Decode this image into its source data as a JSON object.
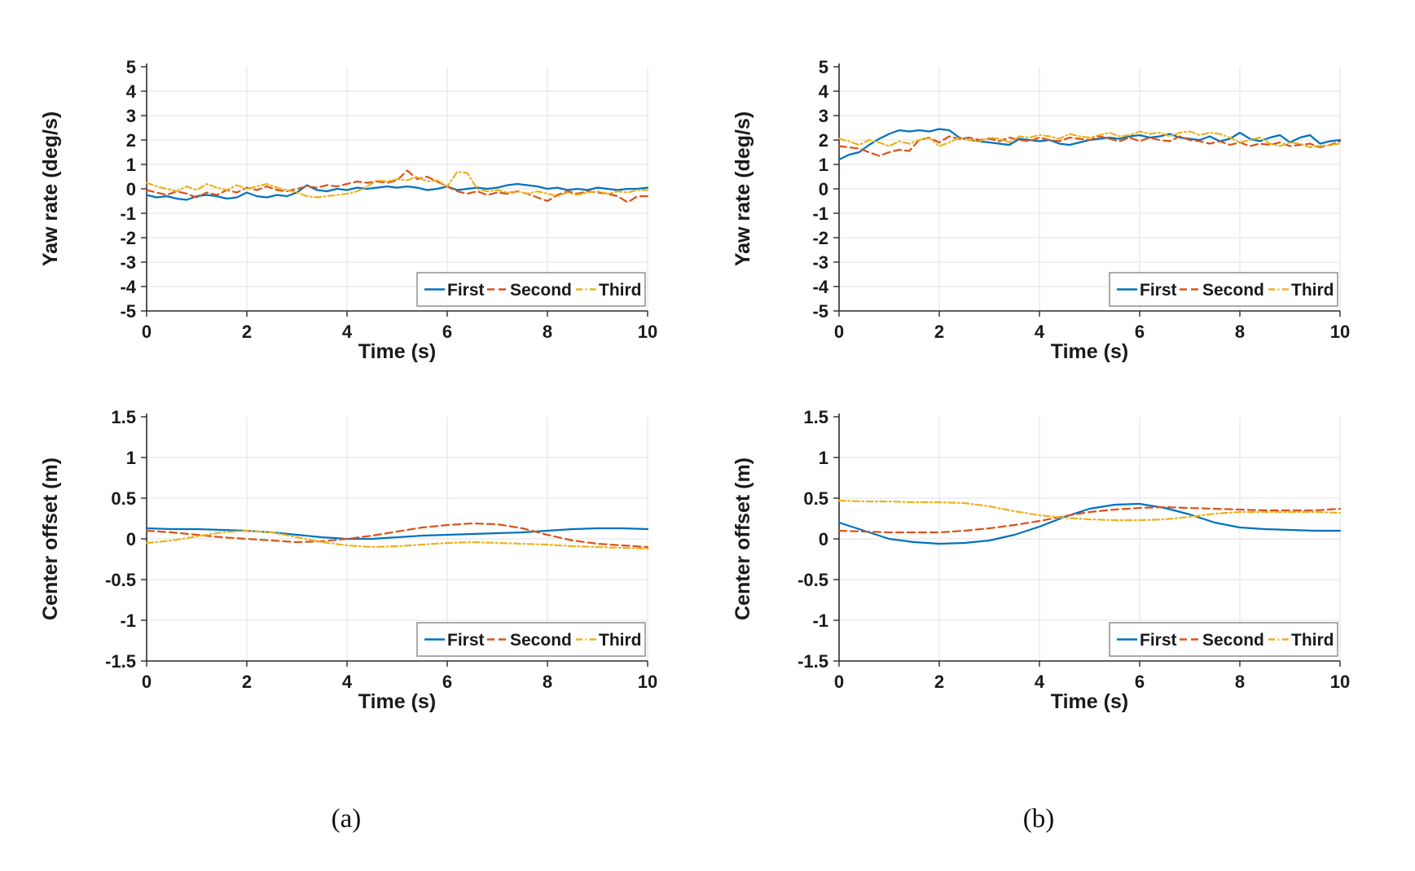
{
  "figure": {
    "background": "#ffffff",
    "captions": {
      "a": "(a)",
      "b": "(b)"
    }
  },
  "palette": {
    "first": "#0072BD",
    "second": "#D95319",
    "third": "#EDB120",
    "axis": "#2b2b2b",
    "grid": "#e7e7e7",
    "tick_label": "#1a1a1a",
    "legend_border": "#8f8f8f",
    "legend_background": "#ffffff"
  },
  "legend_labels": [
    "First",
    "Second",
    "Third"
  ],
  "chart_data": [
    {
      "id": "yaw-a",
      "type": "line",
      "panel": "a",
      "title": "",
      "xlabel": "Time (s)",
      "ylabel": "Yaw rate (deg/s)",
      "xlim": [
        0,
        10
      ],
      "ylim": [
        -5,
        5
      ],
      "xticks": [
        0,
        2,
        4,
        6,
        8,
        10
      ],
      "yticks": [
        5,
        4,
        3,
        2,
        1,
        0,
        -1,
        -2,
        -3,
        -4,
        -5
      ],
      "grid": true,
      "legend_position": "bottom-right",
      "x_start": 0,
      "x_step": 0.2,
      "series": [
        {
          "name": "First",
          "color_key": "first",
          "dash": "solid",
          "values": [
            -0.25,
            -0.35,
            -0.3,
            -0.4,
            -0.45,
            -0.3,
            -0.25,
            -0.3,
            -0.4,
            -0.35,
            -0.15,
            -0.3,
            -0.35,
            -0.25,
            -0.3,
            -0.15,
            0.15,
            -0.05,
            -0.1,
            0.0,
            -0.05,
            0.05,
            0.0,
            0.05,
            0.1,
            0.05,
            0.1,
            0.05,
            -0.05,
            0.0,
            0.1,
            -0.05,
            0.0,
            0.05,
            0.0,
            0.05,
            0.15,
            0.2,
            0.15,
            0.1,
            0.0,
            0.05,
            -0.05,
            0.0,
            -0.05,
            0.05,
            0.0,
            -0.05,
            0.0,
            0.0,
            0.05
          ]
        },
        {
          "name": "Second",
          "color_key": "second",
          "dash": "dashed",
          "values": [
            -0.05,
            -0.15,
            -0.25,
            -0.1,
            -0.2,
            -0.35,
            -0.15,
            -0.25,
            -0.05,
            -0.15,
            0.05,
            -0.05,
            0.1,
            -0.05,
            -0.1,
            0.0,
            0.1,
            0.05,
            0.15,
            0.1,
            0.2,
            0.3,
            0.25,
            0.3,
            0.25,
            0.35,
            0.75,
            0.4,
            0.5,
            0.3,
            0.1,
            -0.1,
            -0.2,
            -0.1,
            -0.25,
            -0.15,
            -0.2,
            -0.1,
            -0.2,
            -0.35,
            -0.5,
            -0.25,
            -0.1,
            -0.2,
            -0.1,
            -0.15,
            -0.2,
            -0.3,
            -0.55,
            -0.3,
            -0.3
          ]
        },
        {
          "name": "Third",
          "color_key": "third",
          "dash": "dashdot",
          "values": [
            0.25,
            0.1,
            0.0,
            -0.1,
            0.1,
            -0.05,
            0.2,
            0.05,
            -0.05,
            0.15,
            0.0,
            0.1,
            0.2,
            0.05,
            -0.05,
            -0.15,
            -0.3,
            -0.35,
            -0.3,
            -0.25,
            -0.2,
            -0.1,
            0.1,
            0.35,
            0.3,
            0.4,
            0.35,
            0.5,
            0.3,
            0.35,
            0.1,
            0.7,
            0.65,
            0.0,
            -0.1,
            -0.05,
            -0.15,
            -0.1,
            -0.2,
            -0.1,
            -0.2,
            -0.3,
            -0.15,
            -0.25,
            -0.15,
            -0.1,
            -0.2,
            -0.1,
            -0.15,
            -0.05,
            -0.05
          ]
        }
      ]
    },
    {
      "id": "yaw-b",
      "type": "line",
      "panel": "b",
      "title": "",
      "xlabel": "Time (s)",
      "ylabel": "Yaw rate (deg/s)",
      "xlim": [
        0,
        10
      ],
      "ylim": [
        -5,
        5
      ],
      "xticks": [
        0,
        2,
        4,
        6,
        8,
        10
      ],
      "yticks": [
        5,
        4,
        3,
        2,
        1,
        0,
        -1,
        -2,
        -3,
        -4,
        -5
      ],
      "grid": true,
      "legend_position": "bottom-right",
      "x_start": 0,
      "x_step": 0.2,
      "series": [
        {
          "name": "First",
          "color_key": "first",
          "dash": "solid",
          "values": [
            1.2,
            1.4,
            1.5,
            1.8,
            2.05,
            2.25,
            2.4,
            2.35,
            2.4,
            2.35,
            2.45,
            2.4,
            2.1,
            2.0,
            1.95,
            1.9,
            1.85,
            1.8,
            2.05,
            2.0,
            1.95,
            2.0,
            1.85,
            1.8,
            1.9,
            2.0,
            2.05,
            2.1,
            2.05,
            2.15,
            2.2,
            2.1,
            2.15,
            2.25,
            2.1,
            2.05,
            2.0,
            2.15,
            1.95,
            2.05,
            2.3,
            2.05,
            1.95,
            2.1,
            2.2,
            1.9,
            2.1,
            2.2,
            1.85,
            1.95,
            2.0
          ]
        },
        {
          "name": "Second",
          "color_key": "second",
          "dash": "dashed",
          "values": [
            1.75,
            1.7,
            1.65,
            1.5,
            1.35,
            1.5,
            1.6,
            1.55,
            2.0,
            2.1,
            1.9,
            2.15,
            2.05,
            2.1,
            2.0,
            2.05,
            1.95,
            2.1,
            2.0,
            1.95,
            2.1,
            2.0,
            1.95,
            2.1,
            2.05,
            2.0,
            2.15,
            2.05,
            1.95,
            2.1,
            1.95,
            2.1,
            2.0,
            1.95,
            2.15,
            2.0,
            1.95,
            1.85,
            1.95,
            1.8,
            1.9,
            1.75,
            1.85,
            1.8,
            1.9,
            1.75,
            1.8,
            1.85,
            1.7,
            1.8,
            1.95
          ]
        },
        {
          "name": "Third",
          "color_key": "third",
          "dash": "dashdot",
          "values": [
            2.05,
            1.95,
            1.8,
            2.0,
            1.9,
            1.75,
            1.95,
            1.85,
            2.0,
            2.1,
            1.75,
            1.9,
            2.1,
            2.0,
            1.95,
            2.1,
            2.05,
            1.9,
            2.15,
            2.1,
            2.2,
            2.15,
            2.05,
            2.25,
            2.15,
            2.1,
            2.2,
            2.3,
            2.15,
            2.2,
            2.35,
            2.25,
            2.3,
            2.15,
            2.3,
            2.35,
            2.2,
            2.3,
            2.25,
            2.1,
            1.9,
            2.0,
            2.1,
            1.85,
            1.75,
            1.9,
            1.85,
            1.7,
            1.75,
            1.8,
            1.85
          ]
        }
      ]
    },
    {
      "id": "offset-a",
      "type": "line",
      "panel": "a",
      "title": "",
      "xlabel": "Time (s)",
      "ylabel": "Center offset (m)",
      "xlim": [
        0,
        10
      ],
      "ylim": [
        -1.5,
        1.5
      ],
      "xticks": [
        0,
        2,
        4,
        6,
        8,
        10
      ],
      "yticks": [
        1.5,
        1,
        0.5,
        0,
        -0.5,
        -1,
        -1.5
      ],
      "grid": true,
      "legend_position": "bottom-right",
      "x_start": 0,
      "x_step": 0.5,
      "series": [
        {
          "name": "First",
          "color_key": "first",
          "dash": "solid",
          "values": [
            0.13,
            0.12,
            0.12,
            0.11,
            0.1,
            0.08,
            0.05,
            0.02,
            0.0,
            0.0,
            0.02,
            0.04,
            0.05,
            0.06,
            0.07,
            0.08,
            0.1,
            0.12,
            0.13,
            0.13,
            0.12
          ]
        },
        {
          "name": "Second",
          "color_key": "second",
          "dash": "dashed",
          "values": [
            0.1,
            0.08,
            0.05,
            0.02,
            0.0,
            -0.02,
            -0.04,
            -0.03,
            0.0,
            0.04,
            0.09,
            0.14,
            0.17,
            0.19,
            0.18,
            0.13,
            0.05,
            -0.02,
            -0.06,
            -0.08,
            -0.1
          ]
        },
        {
          "name": "Third",
          "color_key": "third",
          "dash": "dashdot",
          "values": [
            -0.05,
            -0.02,
            0.03,
            0.08,
            0.1,
            0.08,
            0.02,
            -0.04,
            -0.08,
            -0.1,
            -0.09,
            -0.07,
            -0.05,
            -0.04,
            -0.05,
            -0.06,
            -0.07,
            -0.09,
            -0.1,
            -0.11,
            -0.12
          ]
        }
      ]
    },
    {
      "id": "offset-b",
      "type": "line",
      "panel": "b",
      "title": "",
      "xlabel": "Time (s)",
      "ylabel": "Center offset (m)",
      "xlim": [
        0,
        10
      ],
      "ylim": [
        -1.5,
        1.5
      ],
      "xticks": [
        0,
        2,
        4,
        6,
        8,
        10
      ],
      "yticks": [
        1.5,
        1,
        0.5,
        0,
        -0.5,
        -1,
        -1.5
      ],
      "grid": true,
      "legend_position": "bottom-right",
      "x_start": 0,
      "x_step": 0.5,
      "series": [
        {
          "name": "First",
          "color_key": "first",
          "dash": "solid",
          "values": [
            0.2,
            0.1,
            0.0,
            -0.04,
            -0.06,
            -0.05,
            -0.02,
            0.05,
            0.15,
            0.27,
            0.37,
            0.42,
            0.43,
            0.38,
            0.3,
            0.2,
            0.14,
            0.12,
            0.11,
            0.1,
            0.1
          ]
        },
        {
          "name": "Second",
          "color_key": "second",
          "dash": "dashed",
          "values": [
            0.1,
            0.09,
            0.08,
            0.08,
            0.08,
            0.1,
            0.13,
            0.17,
            0.22,
            0.28,
            0.33,
            0.36,
            0.38,
            0.39,
            0.38,
            0.37,
            0.36,
            0.35,
            0.35,
            0.35,
            0.37
          ]
        },
        {
          "name": "Third",
          "color_key": "third",
          "dash": "dashdot",
          "values": [
            0.47,
            0.46,
            0.46,
            0.45,
            0.45,
            0.44,
            0.4,
            0.34,
            0.29,
            0.26,
            0.24,
            0.23,
            0.23,
            0.24,
            0.27,
            0.31,
            0.33,
            0.33,
            0.33,
            0.33,
            0.32
          ]
        }
      ]
    }
  ]
}
